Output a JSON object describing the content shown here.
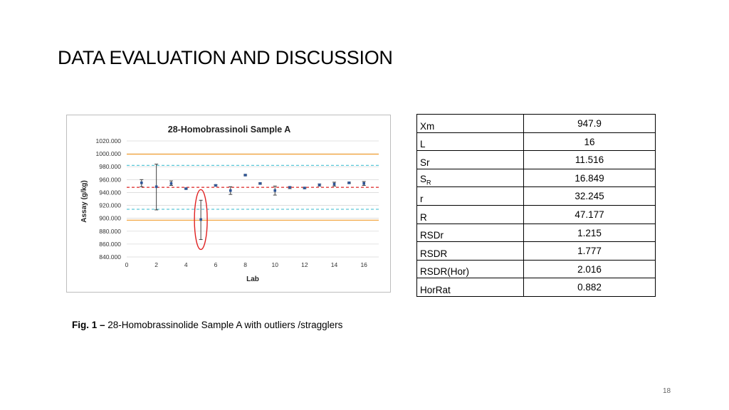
{
  "slide": {
    "title": "DATA EVALUATION AND DISCUSSION",
    "page_number": "18"
  },
  "caption": {
    "label": "Fig. 1 –",
    "text": " 28-Homobrassinolide Sample A with outliers /stragglers"
  },
  "stats_table": [
    {
      "param": "Xm",
      "value": "947.9"
    },
    {
      "param": "L",
      "value": "16"
    },
    {
      "param": "Sr",
      "value": "11.516"
    },
    {
      "param": "S",
      "sub": "R",
      "value": "16.849"
    },
    {
      "param": "r",
      "value": "32.245"
    },
    {
      "param": "R",
      "value": "47.177"
    },
    {
      "param": "RSDr",
      "value": "1.215"
    },
    {
      "param": "RSDR",
      "value": "1.777"
    },
    {
      "param": "RSDR(Hor)",
      "value": "2.016"
    },
    {
      "param": "HorRat",
      "value": "0.882"
    }
  ],
  "chart_data": {
    "type": "scatter",
    "title": "28-Homobrassinoli Sample A",
    "xlabel": "Lab",
    "ylabel": "Assay (g/kg)",
    "xlim": [
      0,
      17
    ],
    "ylim": [
      840,
      1020
    ],
    "xticks": [
      0,
      2,
      4,
      6,
      8,
      10,
      12,
      14,
      16
    ],
    "yticks": [
      840,
      860,
      880,
      900,
      920,
      940,
      960,
      980,
      1000,
      1020
    ],
    "ytick_labels": [
      "840.000",
      "860.000",
      "880.000",
      "900.000",
      "920.000",
      "940.000",
      "960.000",
      "980.000",
      "1000.000",
      "1020.000"
    ],
    "grid": true,
    "series": [
      {
        "color": "#2e5597",
        "points": [
          {
            "x": 1,
            "y": 955,
            "low": 949,
            "high": 960
          },
          {
            "x": 2,
            "y": 949,
            "low": 913,
            "high": 984
          },
          {
            "x": 3,
            "y": 954,
            "low": 951,
            "high": 958
          },
          {
            "x": 4,
            "y": 946,
            "low": 945,
            "high": 947
          },
          {
            "x": 5,
            "y": 898,
            "low": 867,
            "high": 928
          },
          {
            "x": 6,
            "y": 951,
            "low": 950,
            "high": 952
          },
          {
            "x": 7,
            "y": 943,
            "low": 937,
            "high": 949
          },
          {
            "x": 8,
            "y": 967,
            "low": 966,
            "high": 968
          },
          {
            "x": 9,
            "y": 954,
            "low": 953,
            "high": 955
          },
          {
            "x": 10,
            "y": 943,
            "low": 936,
            "high": 950
          },
          {
            "x": 11,
            "y": 948,
            "low": 946,
            "high": 949
          },
          {
            "x": 12,
            "y": 947,
            "low": 946,
            "high": 948
          },
          {
            "x": 13,
            "y": 952,
            "low": 950,
            "high": 953
          },
          {
            "x": 14,
            "y": 953,
            "low": 950,
            "high": 956
          },
          {
            "x": 15,
            "y": 955,
            "low": 954,
            "high": 956
          },
          {
            "x": 16,
            "y": 954,
            "low": 951,
            "high": 957
          }
        ]
      }
    ],
    "reference_lines": [
      {
        "y": 948,
        "color": "#e03a3a",
        "style": "dashed"
      },
      {
        "y": 982,
        "color": "#5bc8d8",
        "style": "dashed"
      },
      {
        "y": 914,
        "color": "#5bc8d8",
        "style": "dashed"
      },
      {
        "y": 999.5,
        "color": "#f2a640",
        "style": "solid"
      },
      {
        "y": 897,
        "color": "#f2a640",
        "style": "solid"
      }
    ],
    "highlight": {
      "x": 5,
      "y": 898,
      "color": "#e02020",
      "shape": "ellipse"
    }
  }
}
